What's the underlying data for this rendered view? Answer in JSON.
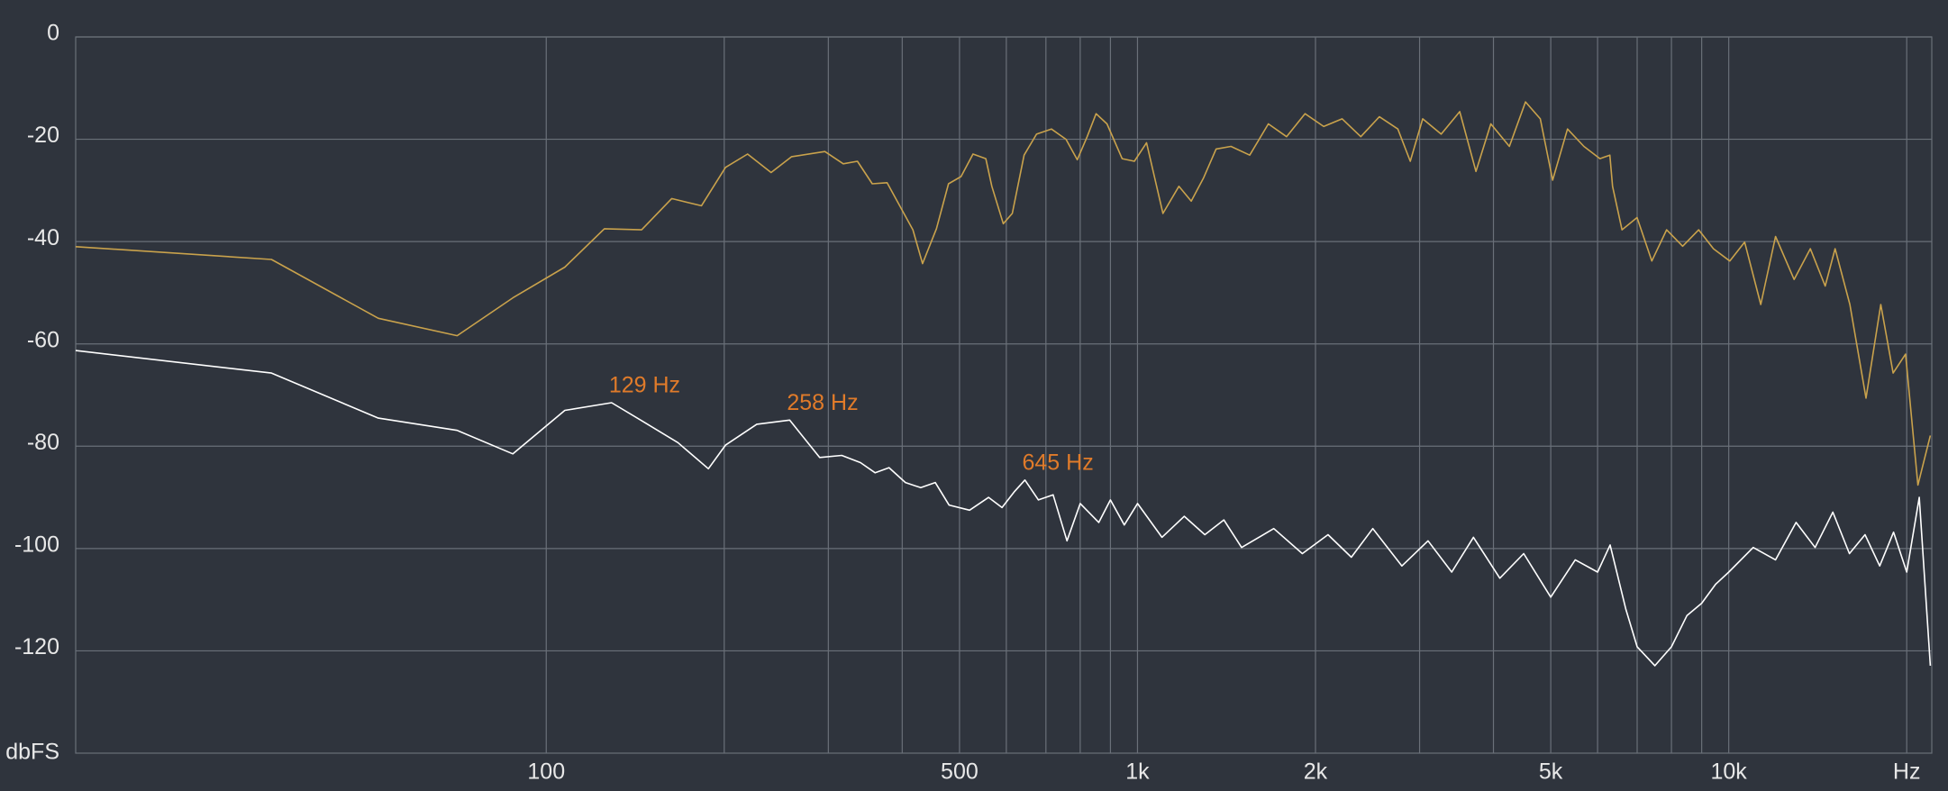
{
  "chart_data": {
    "type": "line",
    "y_label": "dbFS",
    "xscale": "log",
    "grid": true,
    "xlim": [
      16,
      22050
    ],
    "ylim": [
      -140,
      0
    ],
    "yticks": [
      0,
      -20,
      -40,
      -60,
      -80,
      -100,
      -120
    ],
    "xticks": [
      100,
      500,
      {
        "value": 1000,
        "label": "1k"
      },
      {
        "value": 2000,
        "label": "2k"
      },
      {
        "value": 5000,
        "label": "5k"
      },
      {
        "value": 10000,
        "label": "10k"
      },
      {
        "value": 20000,
        "label": "Hz"
      }
    ],
    "minor_xticks": [
      200,
      300,
      400,
      600,
      700,
      800,
      900,
      3000,
      4000,
      6000,
      7000,
      8000,
      9000
    ],
    "annotations": [
      {
        "text": "129 Hz",
        "x": 129,
        "y": -71.5
      },
      {
        "text": "258 Hz",
        "x": 258,
        "y": -74.9
      },
      {
        "text": "645 Hz",
        "x": 645,
        "y": -86.6
      }
    ],
    "series": [
      {
        "color": "#c9a24c",
        "x": [
          16,
          34.3,
          52,
          70.7,
          87.8,
          107.5,
          125.4,
          145,
          163,
          183,
          201,
          219,
          240,
          260,
          296,
          318,
          336,
          356,
          377,
          417,
          433,
          457,
          479,
          503,
          527,
          554,
          567,
          593,
          614,
          643,
          675,
          715,
          757,
          791,
          822,
          851,
          888,
          942,
          988,
          1036,
          1104,
          1175,
          1233,
          1294,
          1358,
          1439,
          1548,
          1665,
          1787,
          1920,
          2065,
          2219,
          2386,
          2565,
          2756,
          2893,
          3037,
          3263,
          3508,
          3736,
          3959,
          4256,
          4531,
          4800,
          5036,
          5336,
          5688,
          6055,
          6294,
          6360,
          6600,
          6998,
          7413,
          7852,
          8356,
          8895,
          9423,
          10040,
          10640,
          11330,
          12000,
          12900,
          13740,
          14560,
          15130,
          16030,
          17070,
          18080,
          18970,
          19910,
          20890,
          21930
        ],
        "values": [
          -41,
          -43.5,
          -55,
          -58.4,
          -51,
          -45,
          -37.5,
          -37.7,
          -31.6,
          -33,
          -25.5,
          -22.9,
          -26.5,
          -23.4,
          -22.4,
          -24.8,
          -24.3,
          -28.7,
          -28.5,
          -37.7,
          -44.3,
          -37.5,
          -28.7,
          -27.3,
          -22.9,
          -23.8,
          -29.2,
          -36.5,
          -34.5,
          -23.1,
          -19,
          -18,
          -20,
          -24,
          -19.5,
          -15,
          -17,
          -23.8,
          -24.3,
          -20.7,
          -34.5,
          -29.2,
          -32.1,
          -27.5,
          -21.9,
          -21.4,
          -23.1,
          -17,
          -19.5,
          -15,
          -17.5,
          -16,
          -19.5,
          -15.6,
          -18,
          -24.3,
          -16,
          -19,
          -14.6,
          -26.3,
          -17,
          -21.4,
          -12.7,
          -16,
          -28,
          -18,
          -21.4,
          -23.8,
          -23.1,
          -29.2,
          -37.7,
          -35.3,
          -43.8,
          -37.7,
          -40.9,
          -37.7,
          -41.4,
          -43.8,
          -40.1,
          -52.3,
          -39,
          -47.4,
          -41.4,
          -48.7,
          -41.4,
          -52.3,
          -70.6,
          -52.3,
          -65.7,
          -62,
          -87.6,
          -77.9
        ]
      },
      {
        "color": "#ffffff",
        "x": [
          16,
          34.3,
          52,
          70.7,
          87.8,
          107.5,
          129,
          145,
          167,
          188,
          201,
          227,
          258,
          290,
          316,
          340,
          360,
          380,
          405,
          430,
          455,
          480,
          520,
          560,
          590,
          620,
          645,
          680,
          720,
          760,
          800,
          860,
          900,
          950,
          1000,
          1100,
          1200,
          1300,
          1400,
          1500,
          1700,
          1900,
          2100,
          2300,
          2500,
          2800,
          3100,
          3400,
          3700,
          4100,
          4500,
          5000,
          5500,
          6000,
          6300,
          6700,
          7000,
          7500,
          8000,
          8500,
          9000,
          9500,
          10000,
          11000,
          12000,
          13000,
          14000,
          15000,
          16000,
          17000,
          18000,
          19000,
          20000,
          21000,
          21930
        ],
        "values": [
          -61.3,
          -65.7,
          -74.5,
          -76.9,
          -81.5,
          -73,
          -71.5,
          -75,
          -79.3,
          -84.4,
          -79.8,
          -75.7,
          -74.9,
          -82.2,
          -81.8,
          -83.2,
          -85.2,
          -84.2,
          -87.1,
          -88.1,
          -87.1,
          -91.5,
          -92.5,
          -90,
          -92,
          -88.8,
          -86.6,
          -90.5,
          -89.5,
          -98.5,
          -91.2,
          -94.9,
          -90.5,
          -95.4,
          -91.2,
          -97.8,
          -93.7,
          -97.3,
          -94.4,
          -99.8,
          -96.1,
          -101,
          -97.3,
          -101.7,
          -96.1,
          -103.4,
          -98.5,
          -104.6,
          -97.8,
          -105.8,
          -101,
          -109.5,
          -102.2,
          -104.6,
          -99.3,
          -111.9,
          -119.2,
          -122.9,
          -119.2,
          -113.1,
          -110.7,
          -107,
          -104.6,
          -99.8,
          -102.2,
          -94.9,
          -99.8,
          -92.9,
          -101,
          -97.3,
          -103.4,
          -96.8,
          -104.6,
          -90,
          -122.9
        ]
      }
    ]
  }
}
